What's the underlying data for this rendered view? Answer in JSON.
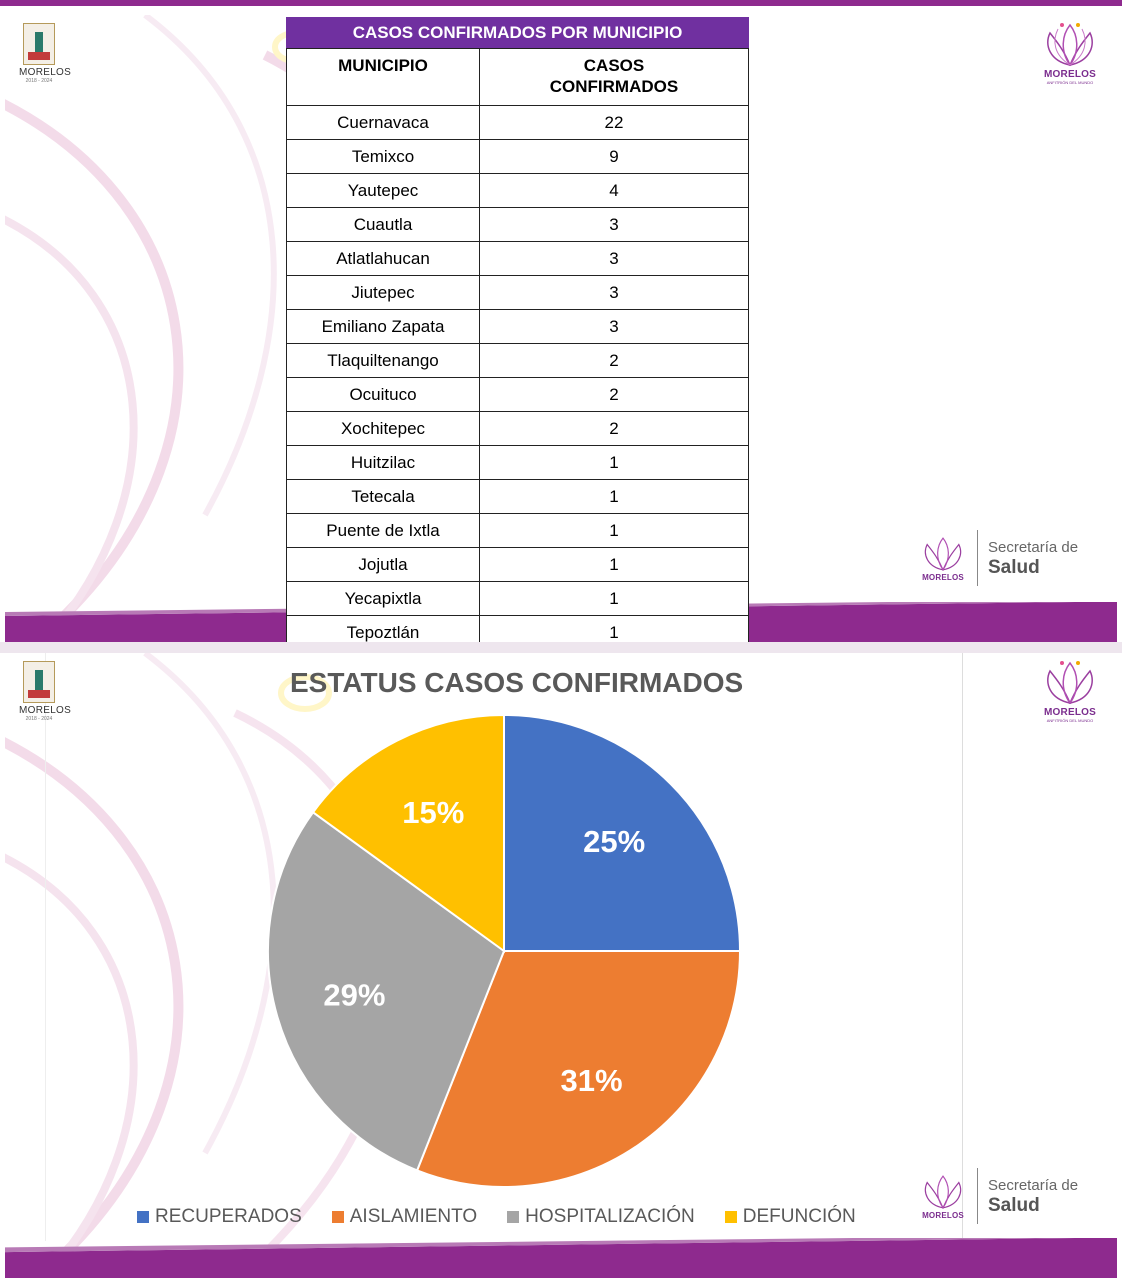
{
  "header_logo": {
    "name": "MORELOS",
    "years": "2018 - 2024"
  },
  "brand_logo": {
    "name": "MORELOS",
    "sub": "ANFITRIÓN DEL MUNDO"
  },
  "salud_logo": {
    "secretaria": "Secretaría de",
    "salud": "Salud",
    "brand": "MORELOS"
  },
  "colors": {
    "purple": "#7030a0",
    "band": "#8e2a8e"
  },
  "table": {
    "title": "CASOS CONFIRMADOS POR MUNICIPIO",
    "headers": [
      "MUNICIPIO",
      "CASOS CONFIRMADOS"
    ],
    "rows": [
      [
        "Cuernavaca",
        "22"
      ],
      [
        "Temixco",
        "9"
      ],
      [
        "Yautepec",
        "4"
      ],
      [
        "Cuautla",
        "3"
      ],
      [
        "Atlatlahucan",
        "3"
      ],
      [
        "Jiutepec",
        "3"
      ],
      [
        "Emiliano Zapata",
        "3"
      ],
      [
        "Tlaquiltenango",
        "2"
      ],
      [
        "Ocuituco",
        "2"
      ],
      [
        "Xochitepec",
        "2"
      ],
      [
        "Huitzilac",
        "1"
      ],
      [
        "Tetecala",
        "1"
      ],
      [
        "Puente de Ixtla",
        "1"
      ],
      [
        "Jojutla",
        "1"
      ],
      [
        "Yecapixtla",
        "1"
      ],
      [
        "Tepoztlán",
        "1"
      ]
    ]
  },
  "chart_data": {
    "type": "pie",
    "title": "ESTATUS CASOS CONFIRMADOS",
    "categories": [
      "RECUPERADOS",
      "AISLAMIENTO",
      "HOSPITALIZACIÓN",
      "DEFUNCIÓN"
    ],
    "values": [
      25,
      31,
      29,
      15
    ],
    "labels": [
      "25%",
      "31%",
      "29%",
      "15%"
    ],
    "colors": [
      "#4472c4",
      "#ed7d31",
      "#a5a5a5",
      "#ffc000"
    ],
    "legend_position": "bottom"
  }
}
